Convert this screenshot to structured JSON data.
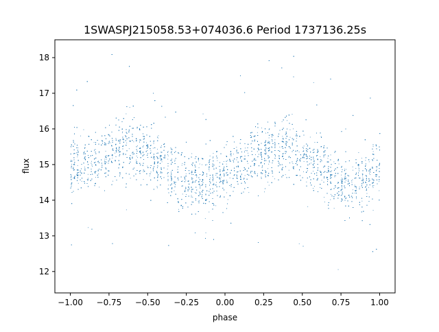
{
  "chart_data": {
    "type": "scatter",
    "title": "1SWASPJ215058.53+074036.6 Period 1737136.25s",
    "xlabel": "phase",
    "ylabel": "flux",
    "xlim": [
      -1.1,
      1.1
    ],
    "ylim": [
      11.4,
      18.5
    ],
    "x_ticks": [
      -1.0,
      -0.75,
      -0.5,
      -0.25,
      0.0,
      0.25,
      0.5,
      0.75,
      1.0
    ],
    "x_tick_labels": [
      "−1.00",
      "−0.75",
      "−0.50",
      "−0.25",
      "0.00",
      "0.25",
      "0.50",
      "0.75",
      "1.00"
    ],
    "y_ticks": [
      12,
      13,
      14,
      15,
      16,
      17,
      18
    ],
    "y_tick_labels": [
      "12",
      "13",
      "14",
      "15",
      "16",
      "17",
      "18"
    ],
    "grid": false,
    "legend": "none",
    "marker_color": "#1f77b4",
    "series": [
      {
        "phase": [
          -1.0,
          -0.9,
          -0.8,
          -0.7,
          -0.6,
          -0.5,
          -0.4,
          -0.3,
          -0.2,
          -0.1,
          0.0,
          0.1,
          0.2,
          0.3,
          0.4,
          0.5,
          0.6,
          0.7,
          0.8,
          0.9,
          1.0
        ],
        "flux_center": [
          14.9,
          15.1,
          15.2,
          15.4,
          15.5,
          15.3,
          15.0,
          14.6,
          14.5,
          14.5,
          14.7,
          15.0,
          15.2,
          15.4,
          15.5,
          15.3,
          15.0,
          14.6,
          14.5,
          14.6,
          14.9
        ],
        "flux_spread": [
          0.75,
          0.7,
          0.75,
          0.8,
          0.8,
          0.75,
          0.7,
          0.75,
          0.75,
          0.7,
          0.7,
          0.7,
          0.75,
          0.8,
          0.8,
          0.75,
          0.7,
          0.75,
          0.75,
          0.7,
          0.75
        ]
      }
    ]
  }
}
